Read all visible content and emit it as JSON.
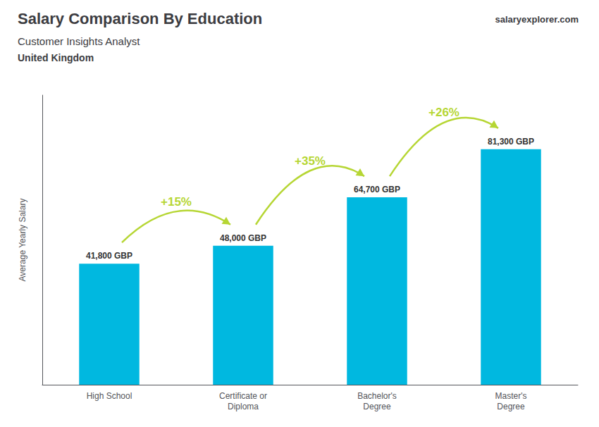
{
  "chart_data": {
    "type": "bar",
    "title": "Salary Comparison By Education",
    "subtitle": [
      "Customer Insights Analyst",
      "United Kingdom"
    ],
    "brand": "salaryexplorer.com",
    "ylabel": "Average Yearly Salary",
    "categories": [
      "High School",
      "Certificate or\nDiploma",
      "Bachelor's\nDegree",
      "Master's\nDegree"
    ],
    "values": [
      41800,
      48000,
      64700,
      81300
    ],
    "value_labels": [
      "41,800 GBP",
      "48,000 GBP",
      "64,700 GBP",
      "81,300 GBP"
    ],
    "data_labels": true,
    "annotations": [
      "+15%",
      "+35%",
      "+26%"
    ],
    "color": "#00b8e0",
    "ylim": [
      0,
      100000
    ],
    "yticks": [],
    "grid": false,
    "tick_labels": "x"
  }
}
